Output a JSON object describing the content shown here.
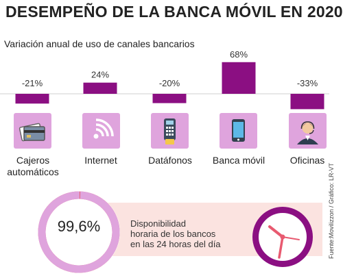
{
  "title": "DESEMPEÑO DE LA BANCA MÓVIL EN 2020",
  "chart_data": {
    "type": "bar",
    "title": "Variación anual de uso de canales bancarios",
    "categories": [
      "Cajeros automáticos",
      "Internet",
      "Datáfonos",
      "Banca móvil",
      "Oficinas"
    ],
    "values": [
      -21,
      24,
      -20,
      68,
      -33
    ],
    "value_labels": [
      "-21%",
      "24%",
      "-20%",
      "68%",
      "-33%"
    ],
    "unit": "%",
    "ylim": [
      -40,
      75
    ],
    "grid": false,
    "legend": "none",
    "bar_color": "#8b0f82",
    "icon_bg_color": "#dfa4dd"
  },
  "categories_display": [
    {
      "line1": "Cajeros",
      "line2": "automáticos",
      "icon": "credit-card-icon"
    },
    {
      "line1": "Internet",
      "line2": "",
      "icon": "wifi-signal-icon"
    },
    {
      "line1": "Datáfonos",
      "line2": "",
      "icon": "card-terminal-icon"
    },
    {
      "line1": "Banca móvil",
      "line2": "",
      "icon": "smartphone-icon"
    },
    {
      "line1": "Oficinas",
      "line2": "",
      "icon": "bank-teller-icon"
    }
  ],
  "availability": {
    "value_text": "99,6%",
    "value": 99.6,
    "line1": "Disponibilidad",
    "line2": "horaria de los bancos",
    "line3": "en las 24 horas del día",
    "ring_color": "#dfa4dd",
    "gap_color": "#e85a70",
    "clock_icon": "clock-icon"
  },
  "source": "Fuente:Movilizzon / Gráfico: LR-VT"
}
